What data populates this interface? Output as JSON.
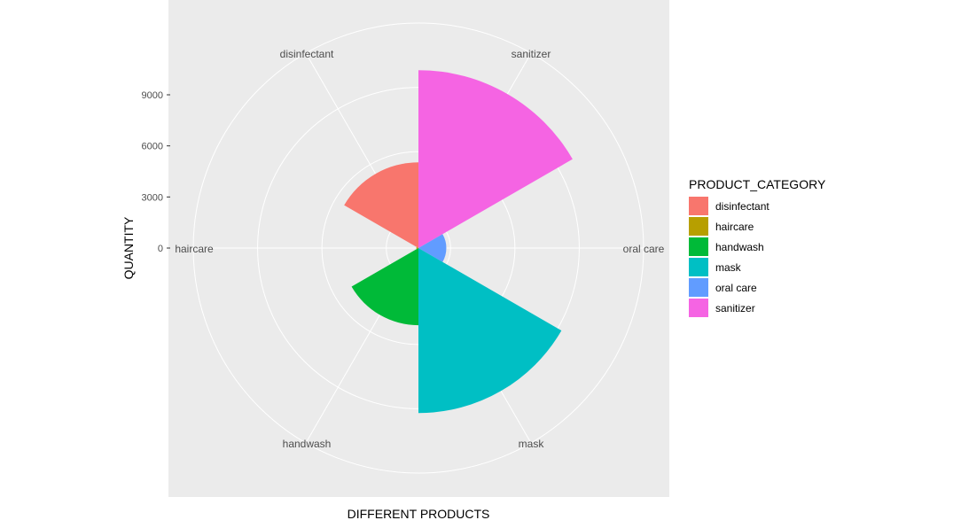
{
  "chart_data": {
    "type": "polar-bar",
    "categories": [
      "disinfectant",
      "haircare",
      "handwash",
      "mask",
      "oral care",
      "sanitizer"
    ],
    "values": [
      4000,
      100,
      3600,
      7700,
      1300,
      8300
    ],
    "colors": [
      "#F8766D",
      "#B79F00",
      "#00BA38",
      "#00BFC4",
      "#619CFF",
      "#F564E3"
    ],
    "angular_labels": [
      "disinfectant",
      "sanitizer",
      "oral care",
      "mask",
      "handwash",
      "haircare"
    ],
    "radial_ticks": [
      0,
      3000,
      6000,
      9000
    ],
    "radial_tick_labels": [
      "0",
      "3000",
      "6000",
      "9000"
    ],
    "xlabel": "DIFFERENT PRODUCTS",
    "ylabel": "QUANTITY",
    "legend": {
      "title": "PRODUCT_CATEGORY",
      "placement": "right",
      "entries": [
        "disinfectant",
        "haircare",
        "handwash",
        "mask",
        "oral care",
        "sanitizer"
      ]
    },
    "grid": true
  }
}
